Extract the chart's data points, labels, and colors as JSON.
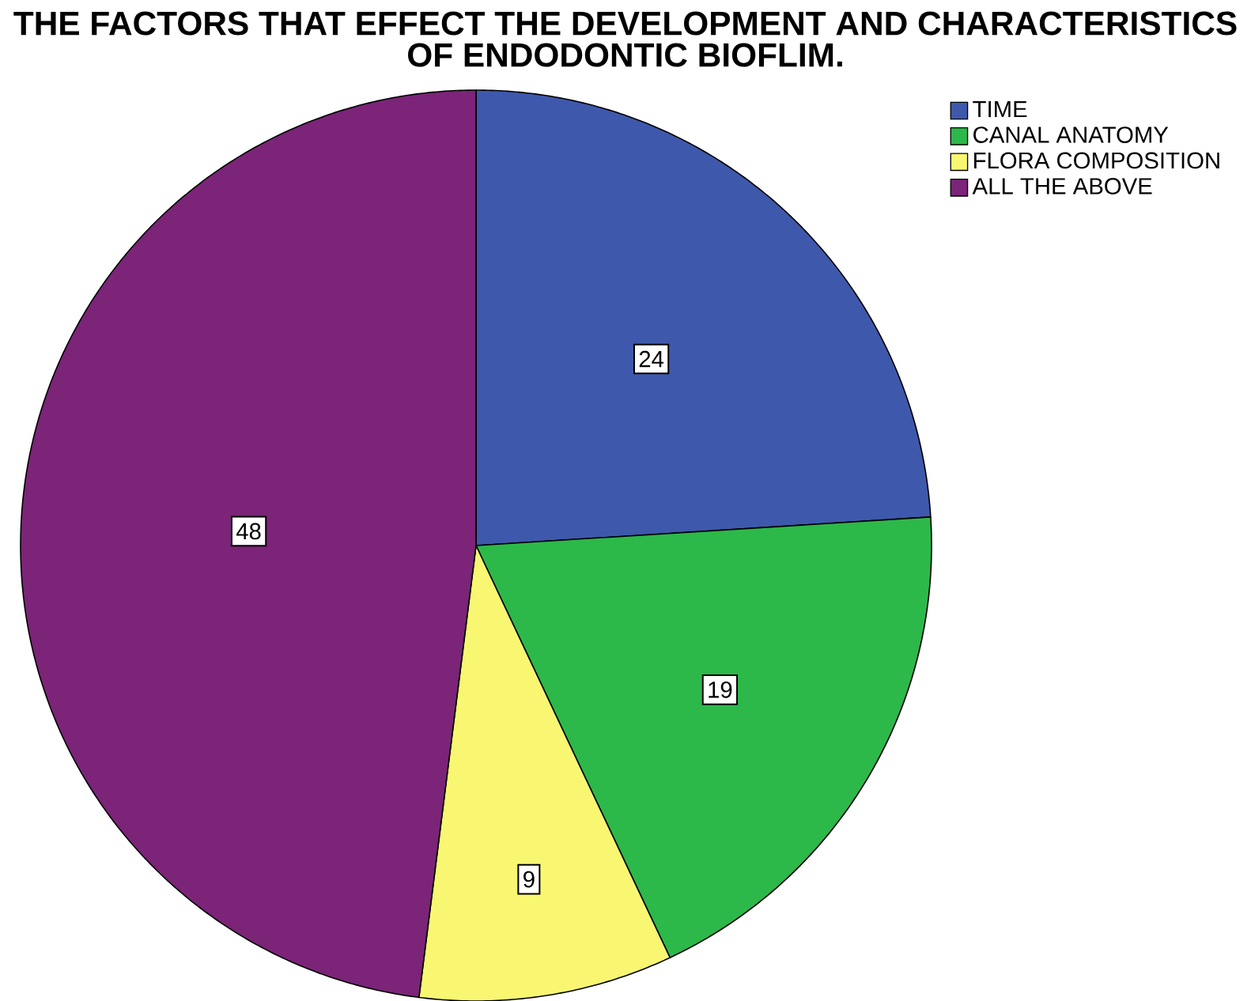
{
  "chart_data": {
    "type": "pie",
    "title": "THE FACTORS THAT EFFECT THE DEVELOPMENT AND CHARACTERISTICS OF ENDODONTIC BIOFLIM.",
    "categories": [
      "TIME",
      "CANAL ANATOMY",
      "FLORA COMPOSITION",
      "ALL THE ABOVE"
    ],
    "values": [
      24,
      19,
      9,
      48
    ],
    "colors": [
      "#3e58ac",
      "#2db84a",
      "#f9f771",
      "#7b2478"
    ],
    "data_labels": true,
    "legend": "top right"
  }
}
